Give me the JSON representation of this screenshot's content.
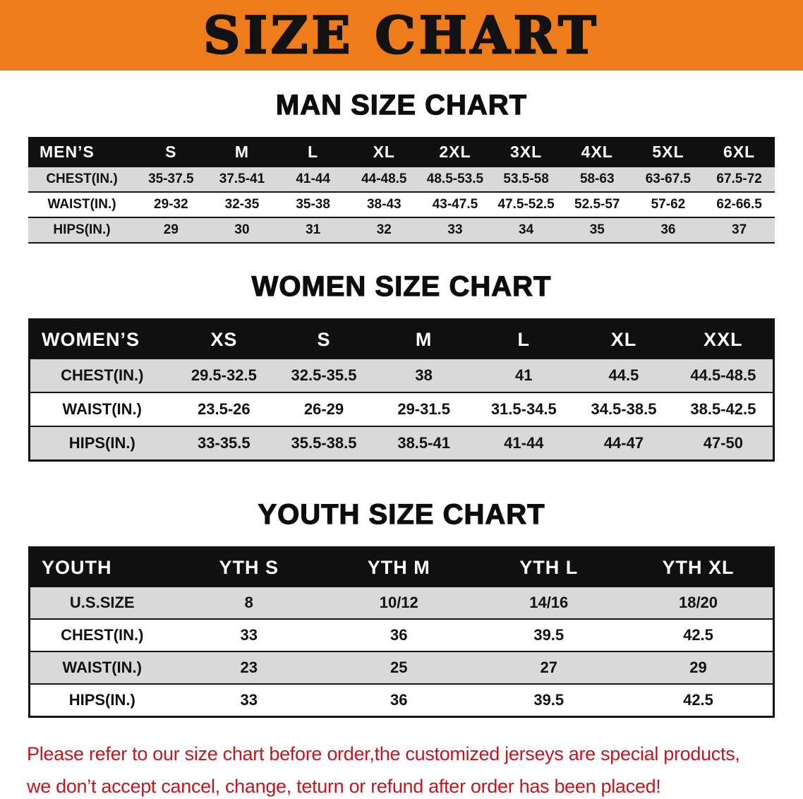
{
  "banner": {
    "title": "SIZE CHART",
    "bg_color": "#ee7c1a"
  },
  "men": {
    "heading": "MAN SIZE CHART",
    "table": {
      "header": [
        "MEN’S",
        "S",
        "M",
        "L",
        "XL",
        "2XL",
        "3XL",
        "4XL",
        "5XL",
        "6XL"
      ],
      "rows": [
        [
          "CHEST(IN.)",
          "35-37.5",
          "37.5-41",
          "41-44",
          "44-48.5",
          "48.5-53.5",
          "53.5-58",
          "58-63",
          "63-67.5",
          "67.5-72"
        ],
        [
          "WAIST(IN.)",
          "29-32",
          "32-35",
          "35-38",
          "38-43",
          "43-47.5",
          "47.5-52.5",
          "52.5-57",
          "57-62",
          "62-66.5"
        ],
        [
          "HIPS(IN.)",
          "29",
          "30",
          "31",
          "32",
          "33",
          "34",
          "35",
          "36",
          "37"
        ]
      ]
    }
  },
  "women": {
    "heading": "WOMEN SIZE CHART",
    "table": {
      "header": [
        "WOMEN’S",
        "XS",
        "S",
        "M",
        "L",
        "XL",
        "XXL"
      ],
      "rows": [
        [
          "CHEST(IN.)",
          "29.5-32.5",
          "32.5-35.5",
          "38",
          "41",
          "44.5",
          "44.5-48.5"
        ],
        [
          "WAIST(IN.)",
          "23.5-26",
          "26-29",
          "29-31.5",
          "31.5-34.5",
          "34.5-38.5",
          "38.5-42.5"
        ],
        [
          "HIPS(IN.)",
          "33-35.5",
          "35.5-38.5",
          "38.5-41",
          "41-44",
          "44-47",
          "47-50"
        ]
      ]
    }
  },
  "youth": {
    "heading": "YOUTH SIZE CHART",
    "table": {
      "header": [
        "YOUTH",
        "YTH S",
        "YTH M",
        "YTH L",
        "YTH XL"
      ],
      "rows": [
        [
          "U.S.SIZE",
          "8",
          "10/12",
          "14/16",
          "18/20"
        ],
        [
          "CHEST(IN.)",
          "33",
          "36",
          "39.5",
          "42.5"
        ],
        [
          "WAIST(IN.)",
          "23",
          "25",
          "27",
          "29"
        ],
        [
          "HIPS(IN.)",
          "33",
          "36",
          "39.5",
          "42.5"
        ]
      ]
    }
  },
  "footer": {
    "line1": "Please refer to our size chart before order,the customized jerseys are special products,",
    "line2": "we don’t accept cancel, change, teturn or refund after order has been placed!",
    "color": "#c4161c"
  }
}
